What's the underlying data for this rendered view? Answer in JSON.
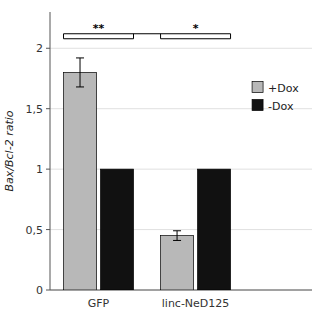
{
  "chart_data": {
    "type": "bar",
    "y_label": "Bax/Bcl-2 ratio",
    "categories": [
      "GFP",
      "linc-NeD125"
    ],
    "series": [
      {
        "name": "+Dox",
        "color": "#b8b8b8",
        "values": [
          1.8,
          0.45
        ],
        "errors": [
          0.12,
          0.04
        ]
      },
      {
        "name": "-Dox",
        "color": "#111111",
        "values": [
          1.0,
          1.0
        ]
      }
    ],
    "ylim": [
      0,
      2.3
    ],
    "yticks": [
      0,
      {
        "value": 0.5,
        "label": "0,5"
      },
      1,
      {
        "value": 1.5,
        "label": "1,5"
      },
      2
    ],
    "grid": true,
    "legend": "upper right",
    "annotations": [
      {
        "text": "**",
        "category": "GFP",
        "y": 2.12
      },
      {
        "text": "*",
        "category": "linc-NeD125",
        "y": 2.12
      }
    ]
  }
}
